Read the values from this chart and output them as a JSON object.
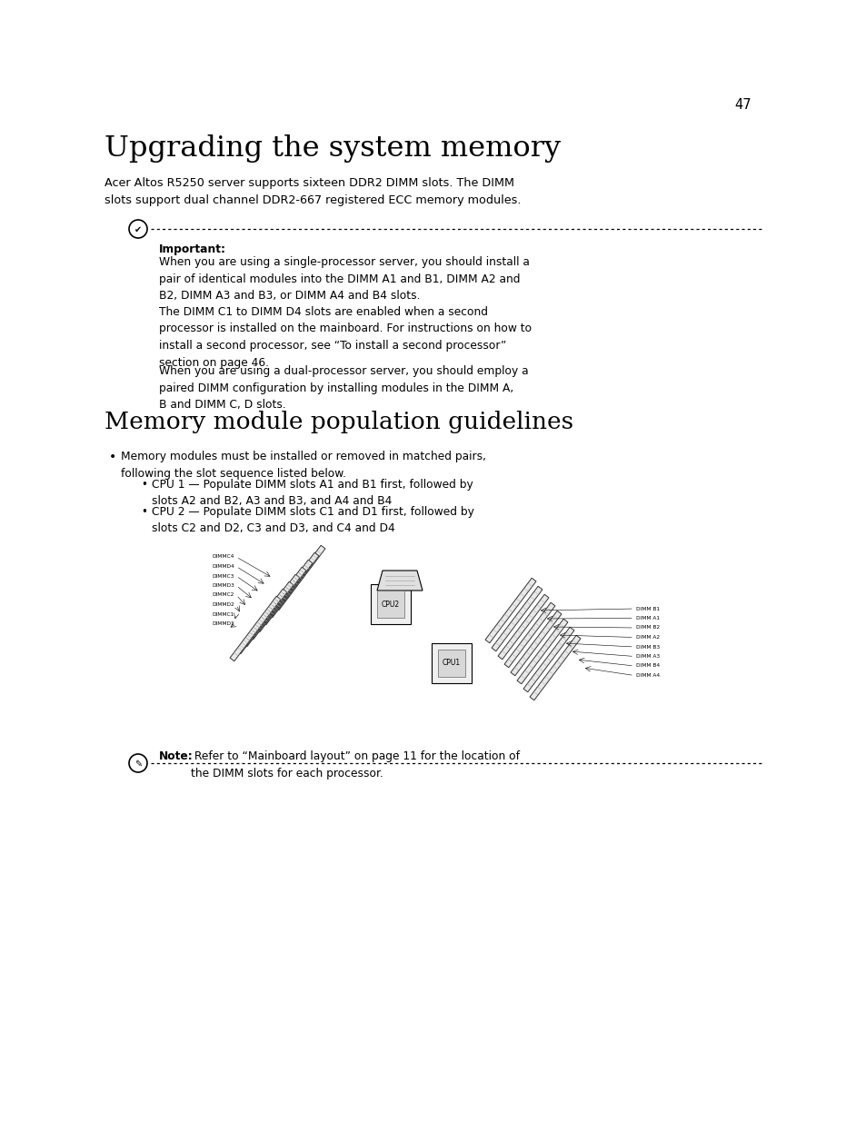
{
  "page_number": "47",
  "title": "Upgrading the system memory",
  "intro_text": "Acer Altos R5250 server supports sixteen DDR2 DIMM slots. The DIMM\nslots support dual channel DDR2-667 registered ECC memory modules.",
  "important_label": "Important:",
  "important_p1": "When you are using a single-processor server, you should install a\npair of identical modules into the DIMM A1 and B1, DIMM A2 and\nB2, DIMM A3 and B3, or DIMM A4 and B4 slots.",
  "important_p2": "The DIMM C1 to DIMM D4 slots are enabled when a second\nprocessor is installed on the mainboard. For instructions on how to\ninstall a second processor, see “To install a second processor”\nsection on page 46.",
  "important_p3": "When you are using a dual-processor server, you should employ a\npaired DIMM configuration by installing modules in the DIMM A,\nB and DIMM C, D slots.",
  "section2_title": "Memory module population guidelines",
  "bullet1": "Memory modules must be installed or removed in matched pairs,\nfollowing the slot sequence listed below.",
  "sub_bullet1": "CPU 1 — Populate DIMM slots A1 and B1 first, followed by\nslots A2 and B2, A3 and B3, and A4 and B4",
  "sub_bullet2": "CPU 2 — Populate DIMM slots C1 and D1 first, followed by\nslots C2 and D2, C3 and D3, and C4 and D4",
  "note_label": "Note:",
  "note_text": " Refer to “Mainboard layout” on page 11 for the location of\nthe DIMM slots for each processor.",
  "bg_color": "#ffffff",
  "text_color": "#000000"
}
